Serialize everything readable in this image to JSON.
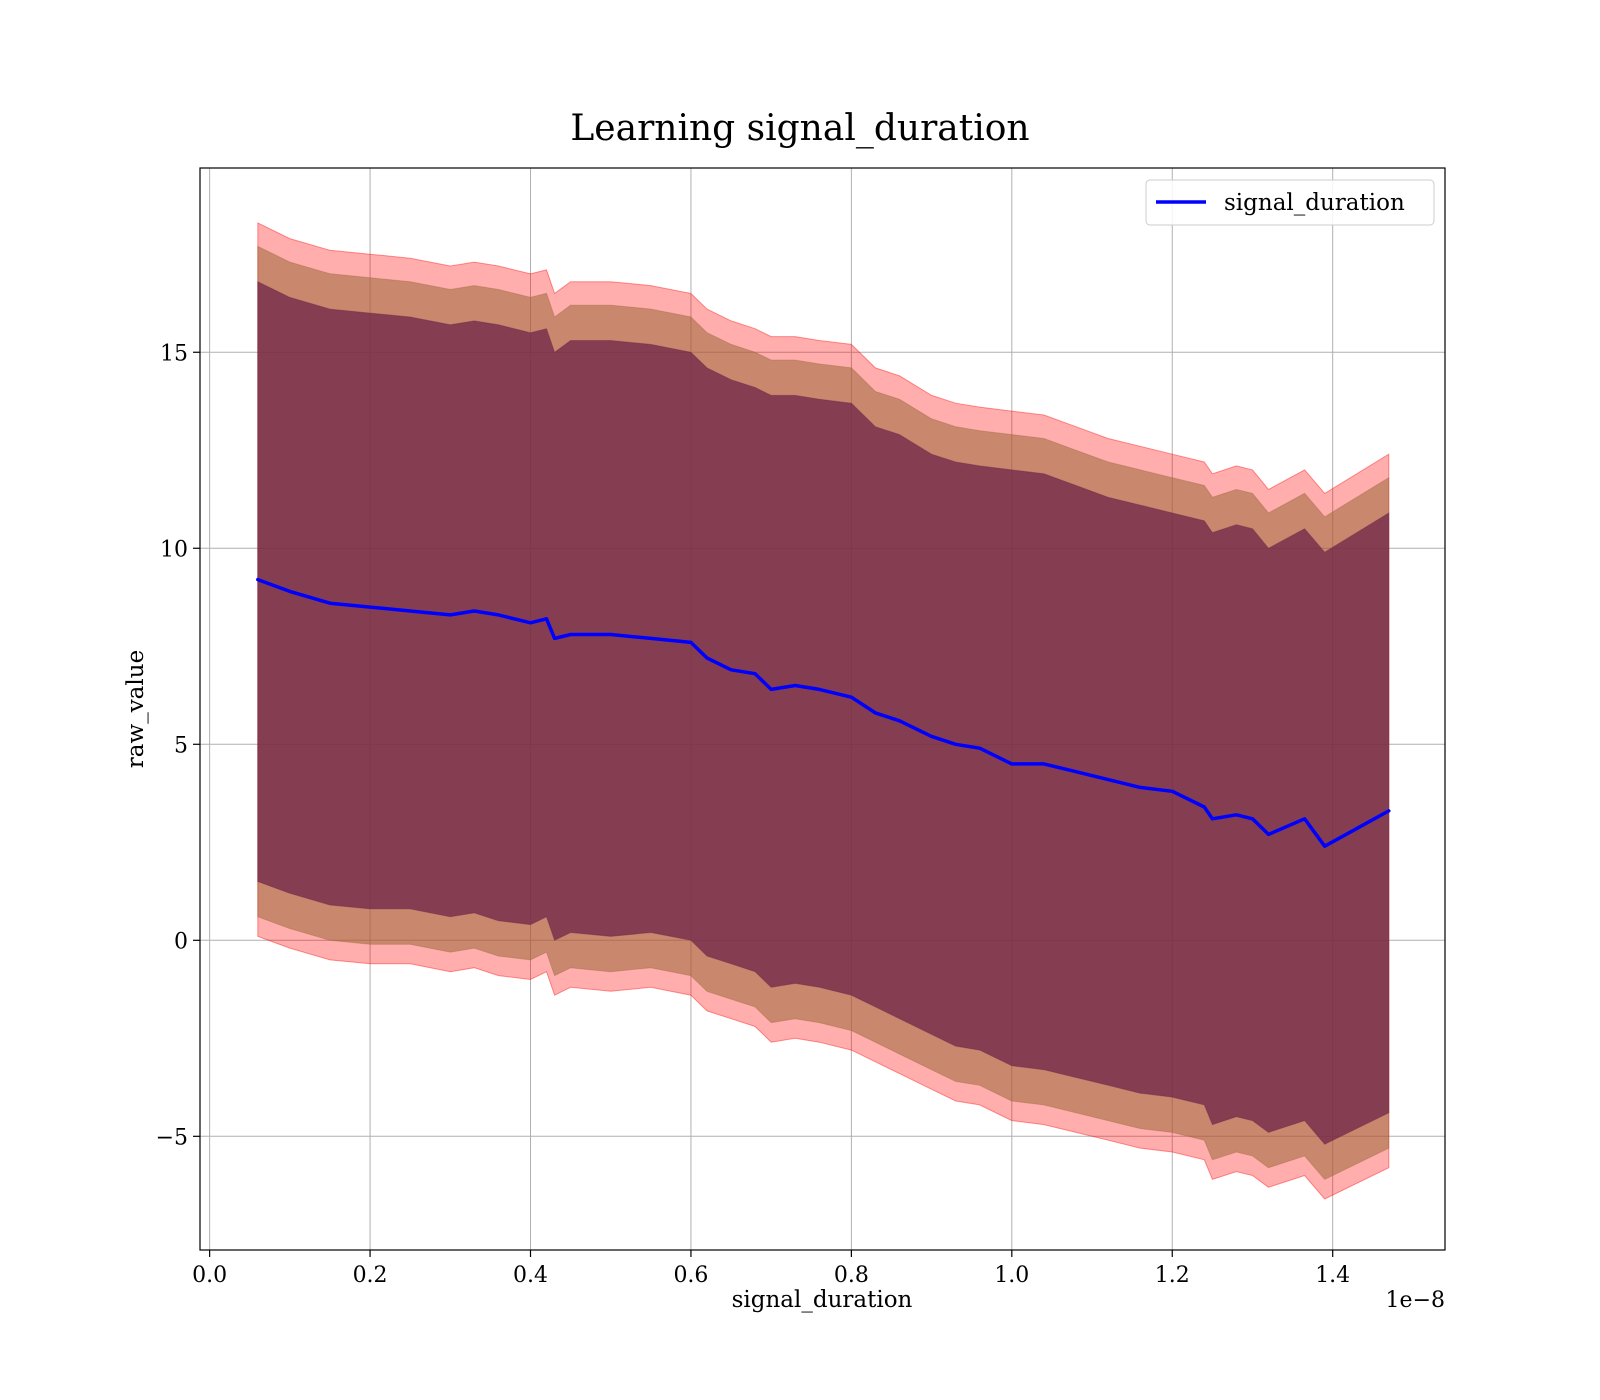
{
  "chart_data": {
    "type": "area",
    "title": "Learning signal_duration",
    "xlabel": "signal_duration",
    "ylabel": "raw_value",
    "x_offset_label": "1e−8",
    "xlim": [
      -0.012,
      1.54
    ],
    "ylim": [
      -7.9,
      19.7
    ],
    "x_ticks": [
      0.0,
      0.2,
      0.4,
      0.6,
      0.8,
      1.0,
      1.2,
      1.4
    ],
    "x_tick_labels": [
      "0.0",
      "0.2",
      "0.4",
      "0.6",
      "0.8",
      "1.0",
      "1.2",
      "1.4"
    ],
    "y_ticks": [
      -5,
      0,
      5,
      10,
      15
    ],
    "y_tick_labels": [
      "−5",
      "0",
      "5",
      "10",
      "15"
    ],
    "grid": true,
    "legend": {
      "position": "top-right",
      "entries": [
        "signal_duration"
      ]
    },
    "colors": {
      "line": "#0000ff",
      "band_outer": "#ff0000",
      "band_middle": "#9c6a3a",
      "band_inner": "#6e2448"
    },
    "x": [
      0.06,
      0.1,
      0.15,
      0.2,
      0.25,
      0.3,
      0.33,
      0.36,
      0.4,
      0.42,
      0.43,
      0.45,
      0.5,
      0.55,
      0.6,
      0.62,
      0.65,
      0.68,
      0.7,
      0.73,
      0.76,
      0.8,
      0.83,
      0.86,
      0.9,
      0.93,
      0.96,
      1.0,
      1.04,
      1.08,
      1.12,
      1.16,
      1.2,
      1.24,
      1.25,
      1.28,
      1.3,
      1.32,
      1.365,
      1.39,
      1.47
    ],
    "series": [
      {
        "name": "signal_duration",
        "values": [
          9.2,
          8.9,
          8.6,
          8.5,
          8.4,
          8.3,
          8.4,
          8.3,
          8.1,
          8.2,
          7.7,
          7.8,
          7.8,
          7.7,
          7.6,
          7.2,
          6.9,
          6.8,
          6.4,
          6.5,
          6.4,
          6.2,
          5.8,
          5.6,
          5.2,
          5.0,
          4.9,
          4.5,
          4.5,
          4.3,
          4.1,
          3.9,
          3.8,
          3.4,
          3.1,
          3.2,
          3.1,
          2.7,
          3.1,
          2.4,
          3.3
        ]
      }
    ],
    "bands": [
      {
        "level": "outer",
        "upper": [
          18.3,
          17.9,
          17.6,
          17.5,
          17.4,
          17.2,
          17.3,
          17.2,
          17.0,
          17.1,
          16.5,
          16.8,
          16.8,
          16.7,
          16.5,
          16.1,
          15.8,
          15.6,
          15.4,
          15.4,
          15.3,
          15.2,
          14.6,
          14.4,
          13.9,
          13.7,
          13.6,
          13.5,
          13.4,
          13.1,
          12.8,
          12.6,
          12.4,
          12.2,
          11.9,
          12.1,
          12.0,
          11.5,
          12.0,
          11.4,
          12.4
        ],
        "lower": [
          0.1,
          -0.2,
          -0.5,
          -0.6,
          -0.6,
          -0.8,
          -0.7,
          -0.9,
          -1.0,
          -0.8,
          -1.4,
          -1.2,
          -1.3,
          -1.2,
          -1.4,
          -1.8,
          -2.0,
          -2.2,
          -2.6,
          -2.5,
          -2.6,
          -2.8,
          -3.1,
          -3.4,
          -3.8,
          -4.1,
          -4.2,
          -4.6,
          -4.7,
          -4.9,
          -5.1,
          -5.3,
          -5.4,
          -5.6,
          -6.1,
          -5.9,
          -6.0,
          -6.3,
          -6.0,
          -6.6,
          -5.8
        ]
      },
      {
        "level": "middle",
        "upper": [
          17.7,
          17.3,
          17.0,
          16.9,
          16.8,
          16.6,
          16.7,
          16.6,
          16.4,
          16.5,
          15.9,
          16.2,
          16.2,
          16.1,
          15.9,
          15.5,
          15.2,
          15.0,
          14.8,
          14.8,
          14.7,
          14.6,
          14.0,
          13.8,
          13.3,
          13.1,
          13.0,
          12.9,
          12.8,
          12.5,
          12.2,
          12.0,
          11.8,
          11.6,
          11.3,
          11.5,
          11.4,
          10.9,
          11.4,
          10.8,
          11.8
        ],
        "lower": [
          0.6,
          0.3,
          0.0,
          -0.1,
          -0.1,
          -0.3,
          -0.2,
          -0.4,
          -0.5,
          -0.3,
          -0.9,
          -0.7,
          -0.8,
          -0.7,
          -0.9,
          -1.3,
          -1.5,
          -1.7,
          -2.1,
          -2.0,
          -2.1,
          -2.3,
          -2.6,
          -2.9,
          -3.3,
          -3.6,
          -3.7,
          -4.1,
          -4.2,
          -4.4,
          -4.6,
          -4.8,
          -4.9,
          -5.1,
          -5.6,
          -5.4,
          -5.5,
          -5.8,
          -5.5,
          -6.1,
          -5.3
        ]
      },
      {
        "level": "inner",
        "upper": [
          16.8,
          16.4,
          16.1,
          16.0,
          15.9,
          15.7,
          15.8,
          15.7,
          15.5,
          15.6,
          15.0,
          15.3,
          15.3,
          15.2,
          15.0,
          14.6,
          14.3,
          14.1,
          13.9,
          13.9,
          13.8,
          13.7,
          13.1,
          12.9,
          12.4,
          12.2,
          12.1,
          12.0,
          11.9,
          11.6,
          11.3,
          11.1,
          10.9,
          10.7,
          10.4,
          10.6,
          10.5,
          10.0,
          10.5,
          9.9,
          10.9
        ],
        "lower": [
          1.5,
          1.2,
          0.9,
          0.8,
          0.8,
          0.6,
          0.7,
          0.5,
          0.4,
          0.6,
          0.0,
          0.2,
          0.1,
          0.2,
          0.0,
          -0.4,
          -0.6,
          -0.8,
          -1.2,
          -1.1,
          -1.2,
          -1.4,
          -1.7,
          -2.0,
          -2.4,
          -2.7,
          -2.8,
          -3.2,
          -3.3,
          -3.5,
          -3.7,
          -3.9,
          -4.0,
          -4.2,
          -4.7,
          -4.5,
          -4.6,
          -4.9,
          -4.6,
          -5.2,
          -4.4
        ]
      }
    ]
  }
}
